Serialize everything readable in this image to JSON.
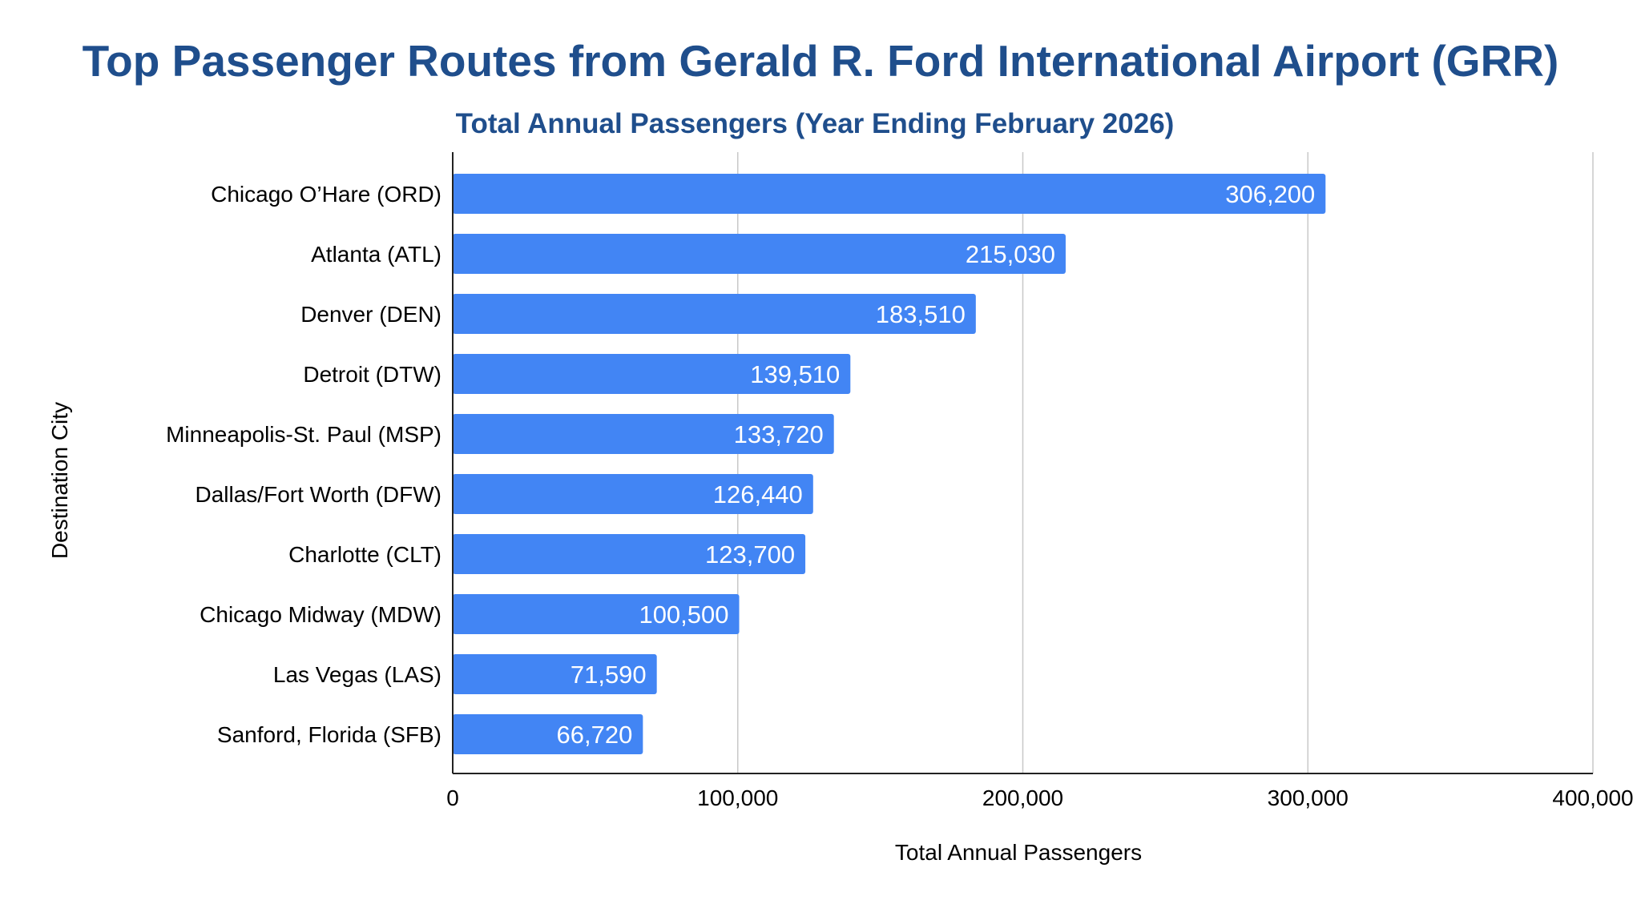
{
  "chart_data": {
    "type": "bar",
    "orientation": "horizontal",
    "title": "Top Passenger Routes from Gerald R. Ford International Airport (GRR)",
    "subtitle": "Total Annual Passengers (Year Ending February 2026)",
    "xlabel": "Total Annual Passengers",
    "ylabel": "Destination City",
    "categories": [
      "Chicago O’Hare (ORD)",
      "Atlanta (ATL)",
      "Denver (DEN)",
      "Detroit (DTW)",
      "Minneapolis-St. Paul (MSP)",
      "Dallas/Fort Worth (DFW)",
      "Charlotte (CLT)",
      "Chicago Midway (MDW)",
      "Las Vegas (LAS)",
      "Sanford, Florida (SFB)"
    ],
    "values": [
      306200,
      215030,
      183510,
      139510,
      133720,
      126440,
      123700,
      100500,
      71590,
      66720
    ],
    "data_labels": [
      "306,200",
      "215,030",
      "183,510",
      "139,510",
      "133,720",
      "126,440",
      "123,700",
      "100,500",
      "71,590",
      "66,720"
    ],
    "xlim": [
      0,
      400000
    ],
    "xticks": [
      0,
      100000,
      200000,
      300000,
      400000
    ],
    "xtick_labels": [
      "0",
      "100,000",
      "200,000",
      "300,000",
      "400,000"
    ],
    "grid": true,
    "legend": "none",
    "colors": {
      "bar": "#4285f4",
      "title": "#1f4e8c",
      "data_label": "#ffffff"
    }
  }
}
